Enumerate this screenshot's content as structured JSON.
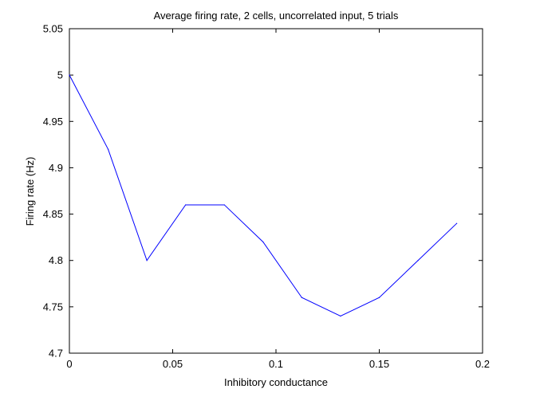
{
  "chart_data": {
    "type": "line",
    "title": "Average firing rate, 2 cells, uncorrelated input, 5 trials",
    "xlabel": "Inhibitory conductance",
    "ylabel": "Firing rate (Hz)",
    "xlim": [
      0,
      0.2
    ],
    "ylim": [
      4.7,
      5.05
    ],
    "xticks": [
      0,
      0.05,
      0.1,
      0.15,
      0.2
    ],
    "xtick_labels": [
      "0",
      "0.05",
      "0.1",
      "0.15",
      "0.2"
    ],
    "yticks": [
      4.7,
      4.75,
      4.8,
      4.85,
      4.9,
      4.95,
      5.0,
      5.05
    ],
    "ytick_labels": [
      "4.7",
      "4.75",
      "4.8",
      "4.85",
      "4.9",
      "4.95",
      "5",
      "5.05"
    ],
    "grid": false,
    "series": [
      {
        "color": "#0000ff",
        "x": [
          0,
          0.01875,
          0.0375,
          0.05625,
          0.075,
          0.09375,
          0.1125,
          0.13125,
          0.15,
          0.16875,
          0.1875
        ],
        "y": [
          5.0,
          4.92,
          4.8,
          4.86,
          4.86,
          4.82,
          4.76,
          4.74,
          4.76,
          4.8,
          4.84
        ]
      }
    ]
  }
}
